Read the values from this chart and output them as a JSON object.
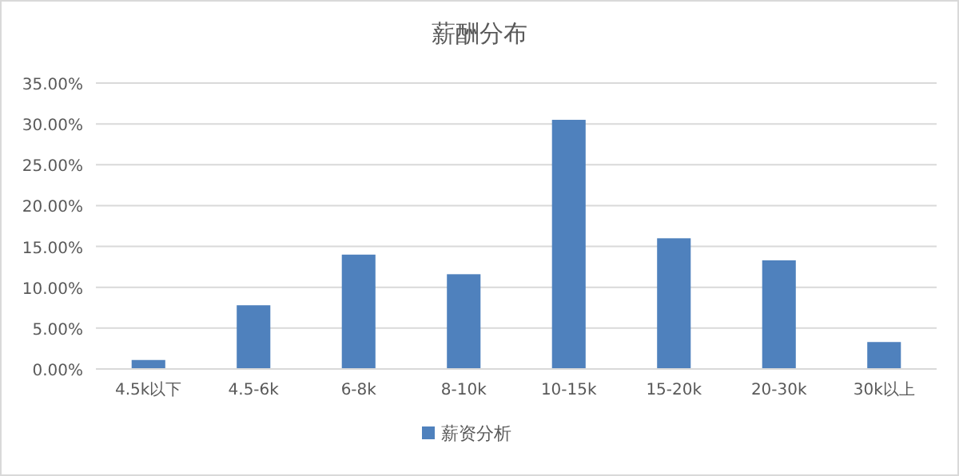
{
  "chart_data": {
    "type": "bar",
    "title": "薪酬分布",
    "categories": [
      "4.5k以下",
      "4.5-6k",
      "6-8k",
      "8-10k",
      "10-15k",
      "15-20k",
      "20-30k",
      "30k以上"
    ],
    "series": [
      {
        "name": "薪资分析",
        "color": "#4f81bd",
        "values": [
          1.1,
          7.8,
          14.0,
          11.6,
          30.5,
          16.0,
          13.3,
          3.3
        ]
      }
    ],
    "ylim": [
      0,
      35
    ],
    "yticks": [
      {
        "value": 0,
        "label": "0.00%"
      },
      {
        "value": 5,
        "label": "5.00%"
      },
      {
        "value": 10,
        "label": "10.00%"
      },
      {
        "value": 15,
        "label": "15.00%"
      },
      {
        "value": 20,
        "label": "20.00%"
      },
      {
        "value": 25,
        "label": "25.00%"
      },
      {
        "value": 30,
        "label": "30.00%"
      },
      {
        "value": 35,
        "label": "35.00%"
      }
    ],
    "grid": "y",
    "legend": "bottom"
  }
}
